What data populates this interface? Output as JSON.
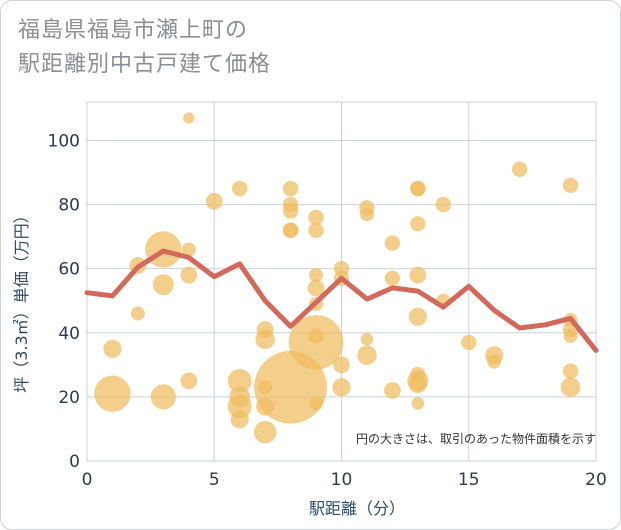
{
  "chart_data": {
    "type": "scatter",
    "title_lines": [
      "福島県福島市瀬上町の",
      "駅距離別中古戸建て価格"
    ],
    "xlabel": "駅距離（分）",
    "ylabel": "坪（3.3㎡）単価（万円）",
    "annotation": "円の大きさは、取引のあった物件面積を示す",
    "xlim": [
      0,
      20
    ],
    "ylim": [
      0,
      112
    ],
    "x_ticks": [
      0,
      5,
      10,
      15,
      20
    ],
    "y_ticks": [
      0,
      20,
      40,
      60,
      80,
      100
    ],
    "grid": true,
    "colors": {
      "bubble": "#f0bc5e",
      "line": "#d2695a",
      "grid": "#c8d3e0"
    },
    "series": [
      {
        "kind": "bubble",
        "points": [
          {
            "x": 1,
            "y": 21,
            "size": 2.6
          },
          {
            "x": 1,
            "y": 35,
            "size": 1.3
          },
          {
            "x": 2,
            "y": 61,
            "size": 1.2
          },
          {
            "x": 2,
            "y": 46,
            "size": 1.0
          },
          {
            "x": 3,
            "y": 66,
            "size": 2.6
          },
          {
            "x": 3,
            "y": 55,
            "size": 1.5
          },
          {
            "x": 3,
            "y": 20,
            "size": 1.8
          },
          {
            "x": 4,
            "y": 107,
            "size": 0.8
          },
          {
            "x": 4,
            "y": 66,
            "size": 1.0
          },
          {
            "x": 4,
            "y": 58,
            "size": 1.2
          },
          {
            "x": 4,
            "y": 25,
            "size": 1.2
          },
          {
            "x": 5,
            "y": 81,
            "size": 1.2
          },
          {
            "x": 6,
            "y": 85,
            "size": 1.1
          },
          {
            "x": 6,
            "y": 25,
            "size": 1.7
          },
          {
            "x": 6,
            "y": 20,
            "size": 1.5
          },
          {
            "x": 6,
            "y": 17,
            "size": 1.7
          },
          {
            "x": 6,
            "y": 13,
            "size": 1.3
          },
          {
            "x": 7,
            "y": 41,
            "size": 1.2
          },
          {
            "x": 7,
            "y": 38,
            "size": 1.4
          },
          {
            "x": 7,
            "y": 23,
            "size": 1.0
          },
          {
            "x": 7,
            "y": 17,
            "size": 1.3
          },
          {
            "x": 7,
            "y": 9,
            "size": 1.6
          },
          {
            "x": 8,
            "y": 85,
            "size": 1.1
          },
          {
            "x": 8,
            "y": 80,
            "size": 1.1
          },
          {
            "x": 8,
            "y": 78,
            "size": 1.1
          },
          {
            "x": 8,
            "y": 72,
            "size": 1.1
          },
          {
            "x": 8,
            "y": 72,
            "size": 1.1
          },
          {
            "x": 8,
            "y": 23,
            "size": 5.2
          },
          {
            "x": 9,
            "y": 76,
            "size": 1.1
          },
          {
            "x": 9,
            "y": 72,
            "size": 1.1
          },
          {
            "x": 9,
            "y": 58,
            "size": 1.0
          },
          {
            "x": 9,
            "y": 54,
            "size": 1.2
          },
          {
            "x": 9,
            "y": 49,
            "size": 1.0
          },
          {
            "x": 9,
            "y": 37,
            "size": 3.9
          },
          {
            "x": 9,
            "y": 39,
            "size": 1.1
          },
          {
            "x": 9,
            "y": 18,
            "size": 1.0
          },
          {
            "x": 10,
            "y": 60,
            "size": 1.1
          },
          {
            "x": 10,
            "y": 57,
            "size": 1.1
          },
          {
            "x": 10,
            "y": 30,
            "size": 1.2
          },
          {
            "x": 10,
            "y": 23,
            "size": 1.3
          },
          {
            "x": 11,
            "y": 79,
            "size": 1.1
          },
          {
            "x": 11,
            "y": 77,
            "size": 1.0
          },
          {
            "x": 11,
            "y": 38,
            "size": 0.9
          },
          {
            "x": 11,
            "y": 33,
            "size": 1.4
          },
          {
            "x": 12,
            "y": 68,
            "size": 1.1
          },
          {
            "x": 12,
            "y": 57,
            "size": 1.1
          },
          {
            "x": 12,
            "y": 22,
            "size": 1.2
          },
          {
            "x": 13,
            "y": 85,
            "size": 1.1
          },
          {
            "x": 13,
            "y": 85,
            "size": 1.1
          },
          {
            "x": 13,
            "y": 74,
            "size": 1.1
          },
          {
            "x": 13,
            "y": 58,
            "size": 1.2
          },
          {
            "x": 13,
            "y": 45,
            "size": 1.3
          },
          {
            "x": 13,
            "y": 27,
            "size": 1.1
          },
          {
            "x": 13,
            "y": 25,
            "size": 1.5
          },
          {
            "x": 13,
            "y": 24,
            "size": 1.3
          },
          {
            "x": 13,
            "y": 18,
            "size": 0.9
          },
          {
            "x": 14,
            "y": 80,
            "size": 1.1
          },
          {
            "x": 14,
            "y": 50,
            "size": 1.0
          },
          {
            "x": 15,
            "y": 37,
            "size": 1.1
          },
          {
            "x": 16,
            "y": 33,
            "size": 1.3
          },
          {
            "x": 16,
            "y": 31,
            "size": 1.0
          },
          {
            "x": 17,
            "y": 91,
            "size": 1.1
          },
          {
            "x": 19,
            "y": 86,
            "size": 1.1
          },
          {
            "x": 19,
            "y": 44,
            "size": 1.0
          },
          {
            "x": 19,
            "y": 41,
            "size": 1.1
          },
          {
            "x": 19,
            "y": 39,
            "size": 1.0
          },
          {
            "x": 19,
            "y": 28,
            "size": 1.1
          },
          {
            "x": 19,
            "y": 23,
            "size": 1.4
          }
        ]
      },
      {
        "kind": "line",
        "x": [
          0,
          1,
          2,
          3,
          4,
          5,
          6,
          7,
          8,
          9,
          10,
          11,
          12,
          13,
          14,
          15,
          16,
          17,
          18,
          19,
          20
        ],
        "y": [
          52.5,
          51.5,
          60.5,
          65.5,
          63.5,
          57.5,
          61.5,
          50,
          42,
          49.5,
          57,
          50.5,
          54,
          53,
          48,
          54.5,
          47,
          41.5,
          42.5,
          44.5,
          34.5
        ]
      }
    ]
  }
}
